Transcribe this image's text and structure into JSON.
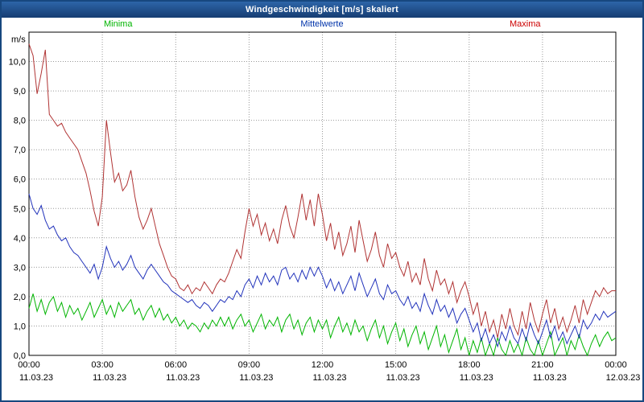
{
  "window": {
    "title": "Windgeschwindigkeit [m/s] skaliert"
  },
  "legend": [
    {
      "label": "Minima",
      "color": "#00b400"
    },
    {
      "label": "Mittelwerte",
      "color": "#0033aa"
    },
    {
      "label": "Maxima",
      "color": "#cc0000"
    }
  ],
  "chart_data": {
    "type": "line",
    "title": "Windgeschwindigkeit [m/s] skaliert",
    "ylabel": "m/s",
    "xlabel": "",
    "ylim": [
      0,
      11
    ],
    "ytick_step": 1,
    "ytick_labels": [
      "0,0",
      "1,0",
      "2,0",
      "3,0",
      "4,0",
      "5,0",
      "6,0",
      "7,0",
      "8,0",
      "9,0",
      "10,0"
    ],
    "x_hours": [
      0,
      24
    ],
    "xtick_hours": [
      0,
      3,
      6,
      9,
      12,
      15,
      18,
      21,
      24
    ],
    "xtick_labels": [
      "00:00",
      "03:00",
      "06:00",
      "09:00",
      "12:00",
      "15:00",
      "18:00",
      "21:00",
      "00:00"
    ],
    "xdate_labels": [
      "11.03.23",
      "11.03.23",
      "11.03.23",
      "11.03.23",
      "11.03.23",
      "11.03.23",
      "11.03.23",
      "11.03.23",
      "12.03.23"
    ],
    "grid": "dotted",
    "grid_color": "#999999",
    "legend_position": "top",
    "sample_interval_minutes": 10,
    "series": [
      {
        "name": "Minima",
        "color": "#00b400",
        "values": [
          1.6,
          2.1,
          1.5,
          1.9,
          1.4,
          1.8,
          2.0,
          1.5,
          1.8,
          1.3,
          1.7,
          1.4,
          1.6,
          1.2,
          1.5,
          1.8,
          1.3,
          1.6,
          1.9,
          1.4,
          1.7,
          1.3,
          1.8,
          1.5,
          1.7,
          1.9,
          1.4,
          1.6,
          1.2,
          1.5,
          1.7,
          1.3,
          1.6,
          1.2,
          1.4,
          1.1,
          1.3,
          1.0,
          1.2,
          0.9,
          1.1,
          1.0,
          0.8,
          1.1,
          0.9,
          1.2,
          1.0,
          1.3,
          1.0,
          1.3,
          0.9,
          1.2,
          1.4,
          1.0,
          1.2,
          0.8,
          1.1,
          1.4,
          0.9,
          1.2,
          1.0,
          1.3,
          0.8,
          1.2,
          1.4,
          0.9,
          1.2,
          0.7,
          1.1,
          1.3,
          0.8,
          1.2,
          0.9,
          1.2,
          0.6,
          1.0,
          1.3,
          0.8,
          1.1,
          0.7,
          1.2,
          0.8,
          1.0,
          0.5,
          0.9,
          1.2,
          0.6,
          1.0,
          0.4,
          0.8,
          1.1,
          0.5,
          0.9,
          0.3,
          0.7,
          1.0,
          0.4,
          0.8,
          0.2,
          0.6,
          1.0,
          0.3,
          0.7,
          0.1,
          0.5,
          0.9,
          0.2,
          0.6,
          0.0,
          0.5,
          0.1,
          0.6,
          0.0,
          0.4,
          0.0,
          0.6,
          0.2,
          0.0,
          0.5,
          0.1,
          0.4,
          0.0,
          0.6,
          0.2,
          0.0,
          0.5,
          0.0,
          0.4,
          0.8,
          0.0,
          0.3,
          0.6,
          0.0,
          0.5,
          0.2,
          0.7,
          0.3,
          0.0,
          0.4,
          0.7,
          0.3,
          0.6,
          0.8,
          0.5,
          0.6
        ]
      },
      {
        "name": "Mittelwerte",
        "color": "#2233bb",
        "values": [
          5.5,
          5.0,
          4.8,
          5.1,
          4.6,
          4.3,
          4.4,
          4.1,
          3.9,
          4.0,
          3.7,
          3.5,
          3.4,
          3.2,
          3.0,
          2.8,
          3.1,
          2.6,
          3.0,
          3.7,
          3.3,
          3.0,
          3.2,
          2.9,
          3.1,
          3.4,
          3.0,
          2.8,
          2.6,
          2.9,
          3.1,
          2.9,
          2.7,
          2.5,
          2.4,
          2.2,
          2.1,
          2.0,
          1.9,
          1.8,
          1.9,
          1.7,
          1.6,
          1.8,
          1.7,
          1.5,
          1.7,
          1.9,
          1.8,
          2.0,
          1.9,
          2.2,
          2.0,
          2.4,
          2.6,
          2.3,
          2.7,
          2.4,
          2.8,
          2.5,
          2.7,
          2.4,
          2.9,
          3.0,
          2.6,
          2.8,
          2.5,
          2.9,
          2.6,
          3.0,
          2.7,
          3.0,
          2.7,
          2.3,
          2.6,
          2.2,
          2.5,
          2.1,
          2.4,
          2.7,
          2.2,
          2.8,
          2.4,
          2.0,
          2.3,
          2.6,
          2.1,
          1.9,
          2.4,
          2.1,
          2.2,
          1.9,
          1.7,
          2.0,
          1.6,
          1.8,
          1.5,
          2.1,
          1.7,
          1.4,
          1.9,
          1.5,
          1.7,
          1.3,
          1.6,
          1.1,
          1.4,
          1.6,
          1.2,
          0.8,
          1.1,
          0.5,
          0.9,
          0.4,
          0.7,
          0.3,
          0.8,
          0.5,
          1.0,
          0.6,
          0.4,
          0.9,
          0.5,
          1.1,
          0.7,
          0.4,
          0.8,
          1.2,
          0.6,
          1.0,
          0.5,
          0.8,
          0.4,
          0.7,
          1.0,
          0.6,
          1.2,
          0.9,
          1.1,
          1.4,
          1.2,
          1.5,
          1.3,
          1.4,
          1.5
        ]
      },
      {
        "name": "Maxima",
        "color": "#b03333",
        "values": [
          10.6,
          10.2,
          8.9,
          9.6,
          10.4,
          8.2,
          8.0,
          7.8,
          7.9,
          7.6,
          7.4,
          7.2,
          7.0,
          6.6,
          6.2,
          5.6,
          4.9,
          4.4,
          5.4,
          8.0,
          6.9,
          5.9,
          6.2,
          5.6,
          5.8,
          6.3,
          5.4,
          4.7,
          4.3,
          4.6,
          5.0,
          4.4,
          3.8,
          3.4,
          3.0,
          2.7,
          2.6,
          2.3,
          2.2,
          2.4,
          2.1,
          2.3,
          2.2,
          2.5,
          2.3,
          2.1,
          2.4,
          2.6,
          2.5,
          2.8,
          3.2,
          3.6,
          3.3,
          4.2,
          5.0,
          4.4,
          4.8,
          4.1,
          4.5,
          3.9,
          4.3,
          3.8,
          4.6,
          5.1,
          4.4,
          4.0,
          4.7,
          5.5,
          4.6,
          5.3,
          4.4,
          5.5,
          4.8,
          3.9,
          4.5,
          3.6,
          4.2,
          3.4,
          3.8,
          4.4,
          3.5,
          4.6,
          3.9,
          3.2,
          3.6,
          4.2,
          3.4,
          3.0,
          3.8,
          3.3,
          3.5,
          3.0,
          2.7,
          3.2,
          2.5,
          2.8,
          2.4,
          3.3,
          2.6,
          2.2,
          2.9,
          2.4,
          2.6,
          2.1,
          2.5,
          1.8,
          2.2,
          2.5,
          2.0,
          1.4,
          1.8,
          1.0,
          1.5,
          0.8,
          1.2,
          0.6,
          1.4,
          0.9,
          1.6,
          1.0,
          0.7,
          1.5,
          0.9,
          1.8,
          1.2,
          0.8,
          1.4,
          1.9,
          1.1,
          1.6,
          0.9,
          1.3,
          0.8,
          1.2,
          1.7,
          1.1,
          1.9,
          1.4,
          1.8,
          2.2,
          2.0,
          2.3,
          2.1,
          2.2,
          2.2
        ]
      }
    ]
  }
}
